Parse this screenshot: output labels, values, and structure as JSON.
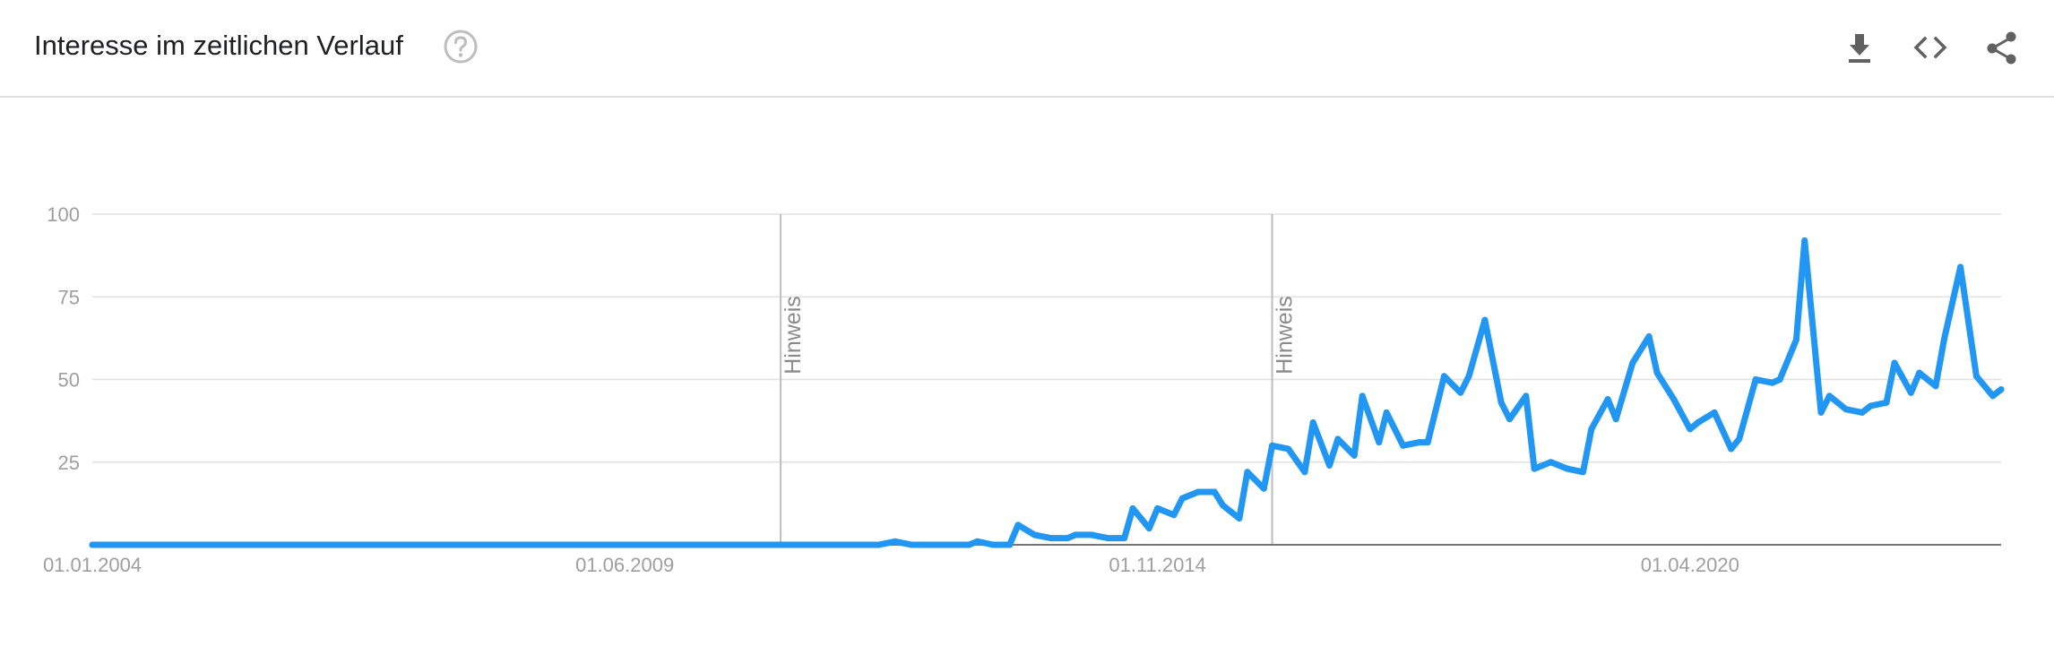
{
  "header": {
    "title": "Interesse im zeitlichen Verlauf",
    "help_icon": "help-circle-icon",
    "tools": [
      {
        "name": "download-icon"
      },
      {
        "name": "embed-code-icon"
      },
      {
        "name": "share-icon"
      }
    ]
  },
  "colors": {
    "line": "#2196f3",
    "grid": "#e0e0e0",
    "axis": "#757575",
    "annotation": "#bdbdbd",
    "tick": "#9e9e9e",
    "title": "#202124",
    "icon": "#616161",
    "help": "#bdbdbd"
  },
  "chart_data": {
    "type": "line",
    "title": "",
    "xlabel": "",
    "ylabel": "",
    "ylim": [
      0,
      100
    ],
    "xlim": [
      "2004-01-01",
      "2023-06-01"
    ],
    "yticks": [
      25,
      50,
      75,
      100
    ],
    "xtick_labels": [
      {
        "date": "2004-01-01",
        "label": "01.01.2004"
      },
      {
        "date": "2009-06-01",
        "label": "01.06.2009"
      },
      {
        "date": "2014-11-01",
        "label": "01.11.2014"
      },
      {
        "date": "2020-04-01",
        "label": "01.04.2020"
      }
    ],
    "grid": true,
    "legend": "none",
    "annotations": [
      {
        "date": "2011-01-01",
        "label": "Hinweis"
      },
      {
        "date": "2016-01-01",
        "label": "Hinweis"
      }
    ],
    "series": [
      {
        "points": [
          [
            "2004-01-01",
            0
          ],
          [
            "2012-01-01",
            0
          ],
          [
            "2012-03-01",
            1
          ],
          [
            "2012-05-01",
            0
          ],
          [
            "2012-12-01",
            0
          ],
          [
            "2013-01-01",
            1
          ],
          [
            "2013-03-01",
            0
          ],
          [
            "2013-05-01",
            0
          ],
          [
            "2013-06-01",
            6
          ],
          [
            "2013-08-01",
            3
          ],
          [
            "2013-10-01",
            2
          ],
          [
            "2013-12-01",
            2
          ],
          [
            "2014-01-01",
            3
          ],
          [
            "2014-03-01",
            3
          ],
          [
            "2014-05-01",
            2
          ],
          [
            "2014-07-01",
            2
          ],
          [
            "2014-08-01",
            11
          ],
          [
            "2014-10-01",
            5
          ],
          [
            "2014-11-01",
            11
          ],
          [
            "2015-01-01",
            9
          ],
          [
            "2015-02-01",
            14
          ],
          [
            "2015-04-01",
            16
          ],
          [
            "2015-06-01",
            16
          ],
          [
            "2015-07-01",
            12
          ],
          [
            "2015-09-01",
            8
          ],
          [
            "2015-10-01",
            22
          ],
          [
            "2015-12-01",
            17
          ],
          [
            "2016-01-01",
            30
          ],
          [
            "2016-03-01",
            29
          ],
          [
            "2016-05-01",
            22
          ],
          [
            "2016-06-01",
            37
          ],
          [
            "2016-08-01",
            24
          ],
          [
            "2016-09-01",
            32
          ],
          [
            "2016-11-01",
            27
          ],
          [
            "2016-12-01",
            45
          ],
          [
            "2017-02-01",
            31
          ],
          [
            "2017-03-01",
            40
          ],
          [
            "2017-05-01",
            30
          ],
          [
            "2017-07-01",
            31
          ],
          [
            "2017-08-01",
            31
          ],
          [
            "2017-10-01",
            51
          ],
          [
            "2017-12-01",
            46
          ],
          [
            "2018-01-01",
            51
          ],
          [
            "2018-03-01",
            68
          ],
          [
            "2018-05-01",
            43
          ],
          [
            "2018-06-01",
            38
          ],
          [
            "2018-08-01",
            45
          ],
          [
            "2018-09-01",
            23
          ],
          [
            "2018-11-01",
            25
          ],
          [
            "2019-01-01",
            23
          ],
          [
            "2019-03-01",
            22
          ],
          [
            "2019-04-01",
            35
          ],
          [
            "2019-06-01",
            44
          ],
          [
            "2019-07-01",
            38
          ],
          [
            "2019-09-01",
            55
          ],
          [
            "2019-11-01",
            63
          ],
          [
            "2019-12-01",
            52
          ],
          [
            "2020-02-01",
            44
          ],
          [
            "2020-04-01",
            35
          ],
          [
            "2020-05-01",
            37
          ],
          [
            "2020-07-01",
            40
          ],
          [
            "2020-09-01",
            29
          ],
          [
            "2020-10-01",
            32
          ],
          [
            "2020-12-01",
            50
          ],
          [
            "2021-02-01",
            49
          ],
          [
            "2021-03-01",
            50
          ],
          [
            "2021-05-01",
            62
          ],
          [
            "2021-06-01",
            92
          ],
          [
            "2021-08-01",
            40
          ],
          [
            "2021-09-01",
            45
          ],
          [
            "2021-11-01",
            41
          ],
          [
            "2022-01-01",
            40
          ],
          [
            "2022-02-01",
            42
          ],
          [
            "2022-04-01",
            43
          ],
          [
            "2022-05-01",
            55
          ],
          [
            "2022-07-01",
            46
          ],
          [
            "2022-08-01",
            52
          ],
          [
            "2022-10-01",
            48
          ],
          [
            "2022-11-01",
            62
          ],
          [
            "2023-01-01",
            84
          ],
          [
            "2023-03-01",
            51
          ],
          [
            "2023-05-01",
            45
          ],
          [
            "2023-06-01",
            47
          ]
        ]
      }
    ]
  }
}
